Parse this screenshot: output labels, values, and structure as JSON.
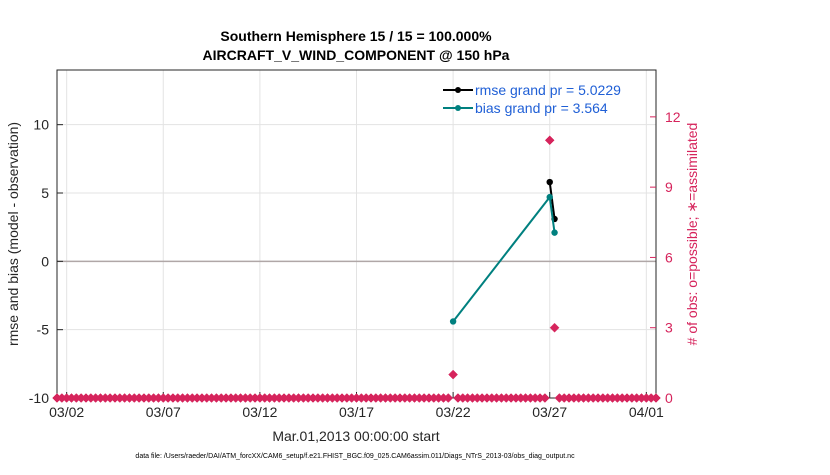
{
  "chart_data": {
    "type": "line",
    "title_line1": "Southern Hemisphere 15 / 15 = 100.000%",
    "title_line2": "AIRCRAFT_V_WIND_COMPONENT @ 150 hPa",
    "xlabel": "Mar.01,2013 00:00:00 start",
    "ylabel_left": "rmse and bias (model - observation)",
    "ylabel_right": "# of obs: o=possible; ∗=assimilated",
    "footer": "data file: /Users/raeder/DAI/ATM_forcXX/CAM6_setup/f.e21.FHIST_BGC.f09_025.CAM6assim.011/Diags_NTrS_2013-03/obs_diag_output.nc",
    "x_range_days": [
      0.5,
      31.5
    ],
    "xticks": [
      {
        "day": 1,
        "label": "03/02"
      },
      {
        "day": 6,
        "label": "03/07"
      },
      {
        "day": 11,
        "label": "03/12"
      },
      {
        "day": 16,
        "label": "03/17"
      },
      {
        "day": 21,
        "label": "03/22"
      },
      {
        "day": 26,
        "label": "03/27"
      },
      {
        "day": 31,
        "label": "04/01"
      }
    ],
    "ylim_left": [
      -10,
      14
    ],
    "yticks_left": [
      -10,
      -5,
      0,
      5,
      10
    ],
    "ylim_right": [
      0,
      14
    ],
    "yticks_right": [
      0,
      3,
      6,
      9,
      12
    ],
    "legend": {
      "placement": "top-right",
      "rmse_label": "rmse grand pr = 5.0229",
      "bias_label": "bias grand pr = 3.564"
    },
    "colors": {
      "rmse": "#000000",
      "bias": "#00807f",
      "obs": "#d6245c",
      "zero_line": "#b0a7a7",
      "grid": "#e3e3e3",
      "legend_text": "#1f5fd6"
    },
    "series": [
      {
        "name": "rmse",
        "x": [
          26.0,
          26.25
        ],
        "y": [
          5.8,
          3.1
        ]
      },
      {
        "name": "bias",
        "x": [
          21.0,
          26.0,
          26.25
        ],
        "y": [
          -4.4,
          4.7,
          2.1
        ]
      }
    ],
    "obs_counts": {
      "x": [
        0.5,
        0.75,
        1.0,
        1.25,
        1.5,
        1.75,
        2.0,
        2.25,
        2.5,
        2.75,
        3.0,
        3.25,
        3.5,
        3.75,
        4.0,
        4.25,
        4.5,
        4.75,
        5.0,
        5.25,
        5.5,
        5.75,
        6.0,
        6.25,
        6.5,
        6.75,
        7.0,
        7.25,
        7.5,
        7.75,
        8.0,
        8.25,
        8.5,
        8.75,
        9.0,
        9.25,
        9.5,
        9.75,
        10.0,
        10.25,
        10.5,
        10.75,
        11.0,
        11.25,
        11.5,
        11.75,
        12.0,
        12.25,
        12.5,
        12.75,
        13.0,
        13.25,
        13.5,
        13.75,
        14.0,
        14.25,
        14.5,
        14.75,
        15.0,
        15.25,
        15.5,
        15.75,
        16.0,
        16.25,
        16.5,
        16.75,
        17.0,
        17.25,
        17.5,
        17.75,
        18.0,
        18.25,
        18.5,
        18.75,
        19.0,
        19.25,
        19.5,
        19.75,
        20.0,
        20.25,
        20.5,
        20.75,
        21.0,
        21.25,
        21.5,
        21.75,
        22.0,
        22.25,
        22.5,
        22.75,
        23.0,
        23.25,
        23.5,
        23.75,
        24.0,
        24.25,
        24.5,
        24.75,
        25.0,
        25.25,
        25.5,
        25.75,
        26.0,
        26.25,
        26.5,
        26.75,
        27.0,
        27.25,
        27.5,
        27.75,
        28.0,
        28.25,
        28.5,
        28.75,
        29.0,
        29.25,
        29.5,
        29.75,
        30.0,
        30.25,
        30.5,
        30.75,
        31.0,
        31.25,
        31.5
      ],
      "y": [
        0,
        0,
        0,
        0,
        0,
        0,
        0,
        0,
        0,
        0,
        0,
        0,
        0,
        0,
        0,
        0,
        0,
        0,
        0,
        0,
        0,
        0,
        0,
        0,
        0,
        0,
        0,
        0,
        0,
        0,
        0,
        0,
        0,
        0,
        0,
        0,
        0,
        0,
        0,
        0,
        0,
        0,
        0,
        0,
        0,
        0,
        0,
        0,
        0,
        0,
        0,
        0,
        0,
        0,
        0,
        0,
        0,
        0,
        0,
        0,
        0,
        0,
        0,
        0,
        0,
        0,
        0,
        0,
        0,
        0,
        0,
        0,
        0,
        0,
        0,
        0,
        0,
        0,
        0,
        0,
        0,
        0,
        1,
        0,
        0,
        0,
        0,
        0,
        0,
        0,
        0,
        0,
        0,
        0,
        0,
        0,
        0,
        0,
        0,
        0,
        0,
        0,
        11,
        3,
        0,
        0,
        0,
        0,
        0,
        0,
        0,
        0,
        0,
        0,
        0,
        0,
        0,
        0,
        0,
        0,
        0,
        0,
        0,
        0,
        0
      ]
    }
  }
}
